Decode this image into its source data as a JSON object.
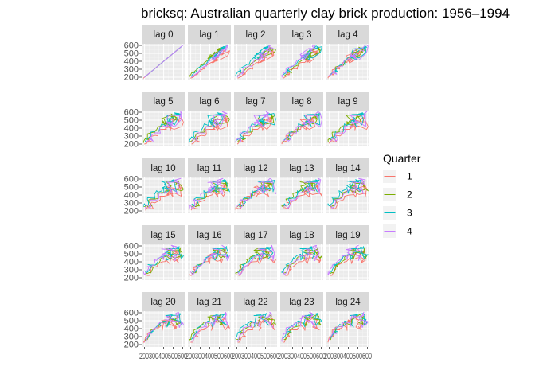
{
  "chart_data": {
    "type": "line",
    "title": "bricksq: Australian quarterly clay brick production: 1956–1994",
    "xlabel": "",
    "ylabel": "",
    "panels": [
      "lag 0",
      "lag 1",
      "lag 2",
      "lag 3",
      "lag 4",
      "lag 5",
      "lag 6",
      "lag 7",
      "lag 8",
      "lag 9",
      "lag 10",
      "lag 11",
      "lag 12",
      "lag 13",
      "lag 14",
      "lag 15",
      "lag 16",
      "lag 17",
      "lag 18",
      "lag 19",
      "lag 20",
      "lag 21",
      "lag 22",
      "lag 23",
      "lag 24"
    ],
    "x_ticks": [
      200,
      300,
      400,
      500,
      600
    ],
    "x_tick_text": "200300400500600",
    "y_ticks": [
      200,
      300,
      400,
      500,
      600
    ],
    "xlim": [
      170,
      620
    ],
    "ylim": [
      170,
      620
    ],
    "grid": true,
    "legend": {
      "title": "Quarter",
      "position": "right",
      "entries": [
        {
          "label": "1",
          "color": "#F8766D"
        },
        {
          "label": "2",
          "color": "#7CAE00"
        },
        {
          "label": "3",
          "color": "#00BFC4"
        },
        {
          "label": "4",
          "color": "#C77CFF"
        }
      ]
    },
    "series_values": [
      189,
      204,
      208,
      197,
      187,
      214,
      227,
      223,
      199,
      229,
      249,
      234,
      208,
      253,
      267,
      255,
      242,
      268,
      290,
      277,
      241,
      253,
      265,
      236,
      229,
      265,
      275,
      258,
      231,
      263,
      308,
      313,
      293,
      328,
      349,
      340,
      309,
      349,
      366,
      340,
      302,
      350,
      362,
      337,
      326,
      358,
      359,
      357,
      341,
      380,
      404,
      409,
      383,
      417,
      454,
      428,
      386,
      428,
      434,
      417,
      385,
      433,
      453,
      436,
      399,
      461,
      476,
      477,
      403,
      483,
      497,
      468,
      450,
      468,
      482,
      474,
      411,
      448,
      421,
      428,
      378,
      436,
      450,
      485,
      470,
      518,
      556,
      562,
      511,
      561,
      570,
      557,
      497,
      564,
      574,
      562,
      476,
      543,
      564,
      554,
      506,
      549,
      565,
      526,
      479,
      509,
      569,
      546,
      536,
      578,
      593,
      564,
      505,
      531,
      577,
      586,
      519,
      557,
      578,
      607,
      533,
      542,
      585,
      591,
      475,
      513,
      512,
      509,
      420,
      473,
      441,
      414,
      385,
      452,
      475,
      480,
      425,
      476,
      490,
      454,
      406,
      446,
      489,
      487,
      453,
      512,
      516,
      495,
      444,
      520,
      542,
      516
    ]
  }
}
